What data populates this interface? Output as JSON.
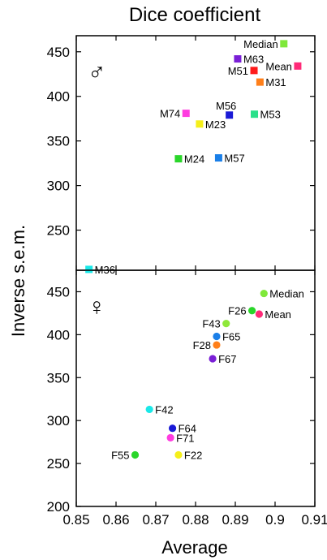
{
  "chart_data": {
    "type": "scatter",
    "title": "Dice coefficient",
    "xlabel": "Average",
    "ylabel": "Inverse s.e.m.",
    "xlim": [
      0.85,
      0.91
    ],
    "xticks": [
      0.85,
      0.86,
      0.87,
      0.88,
      0.89,
      0.9,
      0.91
    ],
    "xtick_labels": [
      "0.85",
      "0.86",
      "0.87",
      "0.88",
      "0.89",
      "0.9",
      "0.91"
    ],
    "grid": false,
    "panels": [
      {
        "symbol": "♂",
        "ylim": [
          205,
          468
        ],
        "yticks": [
          250,
          300,
          350,
          400,
          450
        ],
        "points": [
          {
            "label": "Median",
            "x": 0.9022,
            "y": 459,
            "color": "#7fe83a"
          },
          {
            "label": "M63",
            "x": 0.8906,
            "y": 442,
            "color": "#7a1fd6"
          },
          {
            "label": "M51",
            "x": 0.8947,
            "y": 429,
            "color": "#ff1a1a"
          },
          {
            "label": "Mean",
            "x": 0.9057,
            "y": 434,
            "color": "#ff2a78"
          },
          {
            "label": "M31",
            "x": 0.8962,
            "y": 416,
            "color": "#ff7f1a"
          },
          {
            "label": "M74",
            "x": 0.8776,
            "y": 381,
            "color": "#ff3ce0"
          },
          {
            "label": "M56",
            "x": 0.8885,
            "y": 379,
            "color": "#1a1ad6"
          },
          {
            "label": "M53",
            "x": 0.8948,
            "y": 380,
            "color": "#2ae08a"
          },
          {
            "label": "M23",
            "x": 0.881,
            "y": 369,
            "color": "#f5ef1a"
          },
          {
            "label": "M24",
            "x": 0.8757,
            "y": 330,
            "color": "#2ad62a"
          },
          {
            "label": "M57",
            "x": 0.8858,
            "y": 331,
            "color": "#1a7fe8"
          },
          {
            "label": "M36",
            "x": 0.8532,
            "y": 206,
            "color": "#1ae8e8"
          }
        ]
      },
      {
        "symbol": "♀",
        "ylim": [
          200,
          475
        ],
        "yticks": [
          200,
          250,
          300,
          350,
          400,
          450
        ],
        "points": [
          {
            "label": "Median",
            "x": 0.8972,
            "y": 448,
            "color": "#7fe83a"
          },
          {
            "label": "F26",
            "x": 0.8942,
            "y": 428,
            "color": "#2ad62a"
          },
          {
            "label": "Mean",
            "x": 0.896,
            "y": 424,
            "color": "#ff2a78"
          },
          {
            "label": "F43",
            "x": 0.8877,
            "y": 413,
            "color": "#8fe83a"
          },
          {
            "label": "F65",
            "x": 0.8853,
            "y": 398,
            "color": "#1a7fe8"
          },
          {
            "label": "F28",
            "x": 0.8853,
            "y": 388,
            "color": "#ff7f1a"
          },
          {
            "label": "F67",
            "x": 0.8843,
            "y": 372,
            "color": "#7a1fd6"
          },
          {
            "label": "F42",
            "x": 0.8684,
            "y": 313,
            "color": "#1ae8e8"
          },
          {
            "label": "F64",
            "x": 0.8742,
            "y": 291,
            "color": "#1a1ad6"
          },
          {
            "label": "F71",
            "x": 0.8737,
            "y": 280,
            "color": "#ff3ce0"
          },
          {
            "label": "F55",
            "x": 0.8648,
            "y": 260,
            "color": "#2ad62a"
          },
          {
            "label": "F22",
            "x": 0.8757,
            "y": 260,
            "color": "#f5ef1a"
          }
        ]
      }
    ]
  }
}
